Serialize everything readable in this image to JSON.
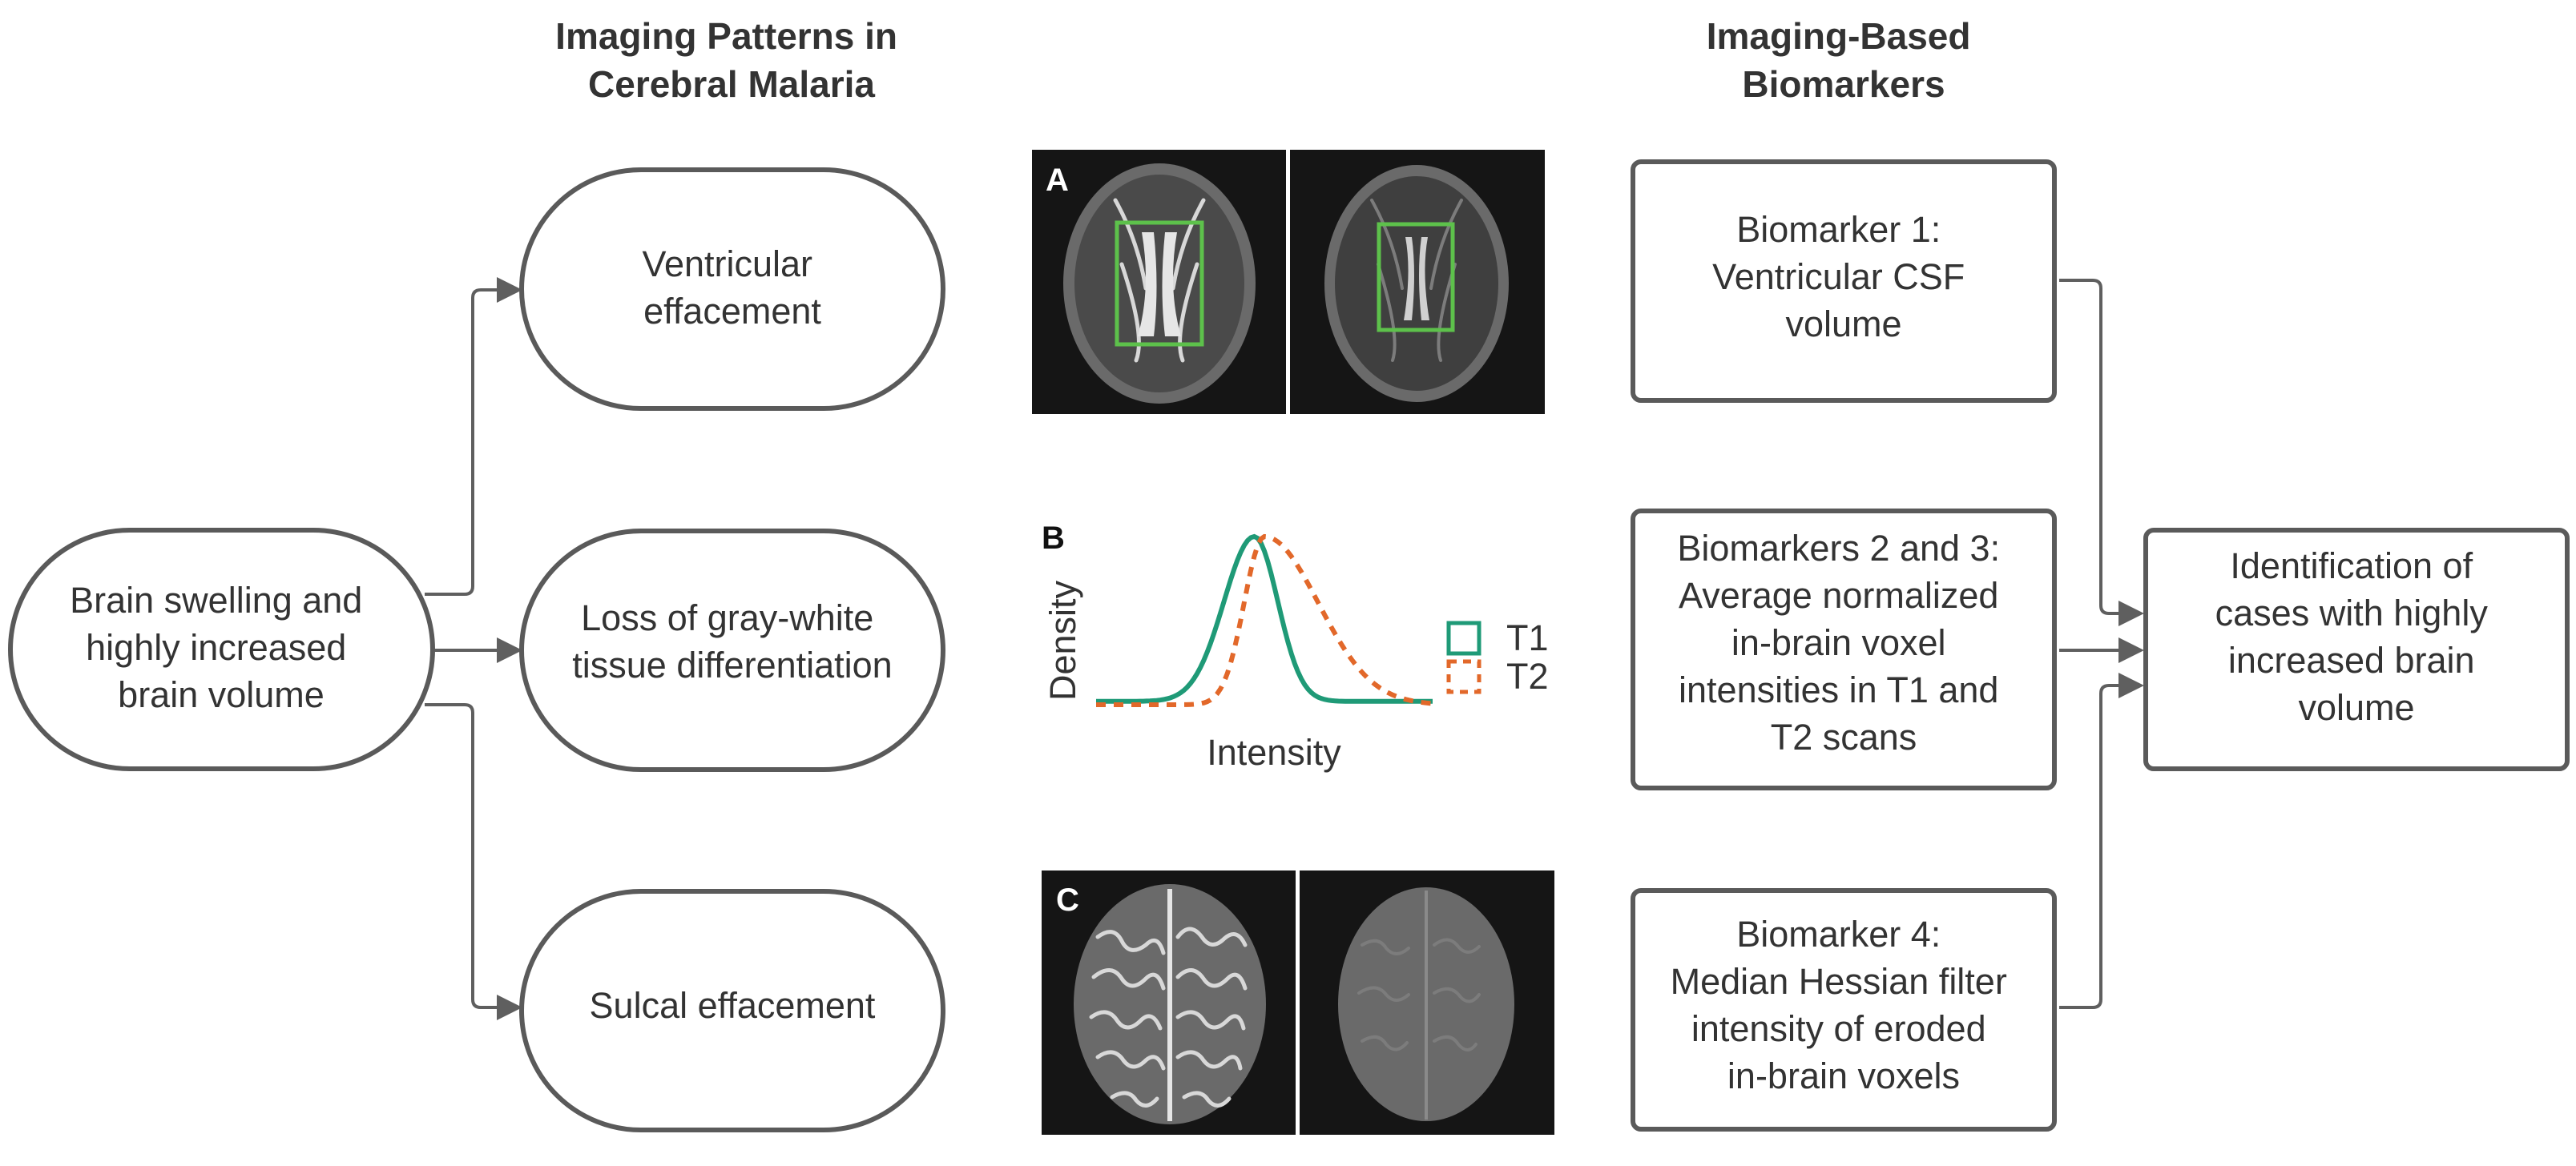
{
  "headings": {
    "patterns": [
      "Imaging Patterns in",
      "Cerebral Malaria"
    ],
    "biomarkers": [
      "Imaging-Based",
      "Biomarkers"
    ]
  },
  "source_node": [
    "Brain swelling and",
    "highly increased",
    "brain volume"
  ],
  "patterns": [
    {
      "lines": [
        "Ventricular",
        "effacement"
      ]
    },
    {
      "lines": [
        "Loss of gray-white",
        "tissue differentiation"
      ]
    },
    {
      "lines": [
        "Sulcal effacement"
      ]
    }
  ],
  "panels": {
    "a_label": "A",
    "b_label": "B",
    "c_label": "C",
    "roi_color": "#5dc14b"
  },
  "chart_data": {
    "type": "line",
    "title": "",
    "xlabel": "Intensity",
    "ylabel": "Density",
    "legend_position": "right",
    "series": [
      {
        "name": "T1",
        "color": "#1f9a77",
        "style": "solid",
        "peak": 0.47,
        "sigma_left": 0.09,
        "sigma_right": 0.07,
        "baseline": 0.02
      },
      {
        "name": "T2",
        "color": "#e2682a",
        "style": "dashed",
        "peak": 0.5,
        "sigma_left": 0.06,
        "sigma_right": 0.16,
        "baseline": 0.0
      }
    ]
  },
  "biomarkers": [
    {
      "lines": [
        "Biomarker 1:",
        "Ventricular CSF",
        "volume"
      ]
    },
    {
      "lines": [
        "Biomarkers 2 and 3:",
        "Average normalized",
        "in-brain voxel",
        "intensities in T1 and",
        "T2 scans"
      ]
    },
    {
      "lines": [
        "Biomarker 4:",
        "Median Hessian filter",
        "intensity of eroded",
        "in-brain voxels"
      ]
    }
  ],
  "outcome": [
    "Identification of",
    "cases with highly",
    "increased brain",
    "volume"
  ],
  "colors": {
    "box_stroke": "#5a5a5a",
    "text": "#333333",
    "connector": "#5f5f5f",
    "scan_bg": "#151515"
  }
}
